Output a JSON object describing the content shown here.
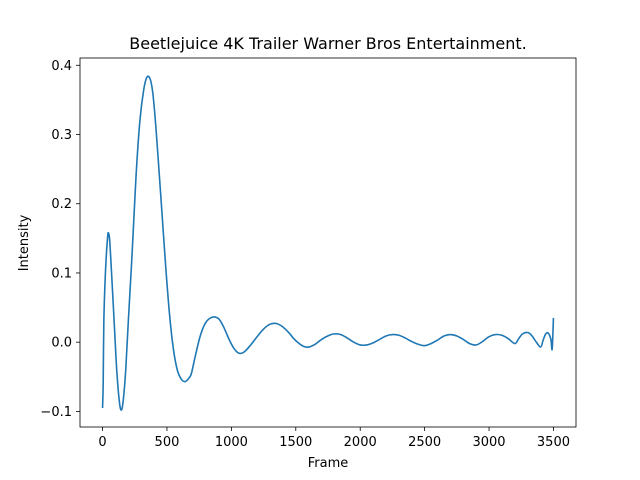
{
  "chart_data": {
    "type": "line",
    "title": "Beetlejuice  4K Trailer  Warner Bros Entertainment.",
    "xlabel": "Frame",
    "ylabel": "Intensity",
    "xlim": [
      -175,
      3675
    ],
    "ylim": [
      -0.1225,
      0.4105
    ],
    "xticks": [
      0,
      500,
      1000,
      1500,
      2000,
      2500,
      3000,
      3500
    ],
    "xtick_labels": [
      "0",
      "500",
      "1000",
      "1500",
      "2000",
      "2500",
      "3000",
      "3500"
    ],
    "yticks": [
      -0.1,
      0.0,
      0.1,
      0.2,
      0.3,
      0.4
    ],
    "ytick_labels": [
      "−0.1",
      "0.0",
      "0.1",
      "0.2",
      "0.3",
      "0.4"
    ],
    "grid": false,
    "series": [
      {
        "color": "#1f77b4",
        "x": [
          0,
          5,
          10,
          20,
          30,
          40,
          45,
          55,
          70,
          90,
          110,
          130,
          145,
          160,
          180,
          200,
          230,
          260,
          290,
          320,
          345,
          370,
          390,
          410,
          430,
          460,
          490,
          520,
          550,
          580,
          610,
          640,
          670,
          690,
          720,
          760,
          800,
          850,
          900,
          940,
          980,
          1020,
          1060,
          1100,
          1150,
          1200,
          1250,
          1300,
          1350,
          1400,
          1450,
          1480,
          1520,
          1560,
          1600,
          1650,
          1700,
          1760,
          1800,
          1850,
          1900,
          1950,
          2000,
          2050,
          2100,
          2150,
          2200,
          2250,
          2300,
          2350,
          2400,
          2450,
          2500,
          2550,
          2600,
          2650,
          2700,
          2750,
          2800,
          2850,
          2900,
          2950,
          3000,
          3050,
          3100,
          3150,
          3200,
          3230,
          3260,
          3300,
          3330,
          3360,
          3400,
          3420,
          3440,
          3460,
          3480,
          3490,
          3500
        ],
        "y": [
          -0.095,
          -0.06,
          0.03,
          0.09,
          0.128,
          0.153,
          0.158,
          0.148,
          0.1,
          0.03,
          -0.04,
          -0.085,
          -0.098,
          -0.085,
          -0.04,
          0.03,
          0.13,
          0.24,
          0.32,
          0.365,
          0.383,
          0.38,
          0.36,
          0.32,
          0.27,
          0.19,
          0.11,
          0.04,
          -0.01,
          -0.04,
          -0.053,
          -0.057,
          -0.052,
          -0.045,
          -0.02,
          0.01,
          0.028,
          0.036,
          0.034,
          0.022,
          0.005,
          -0.009,
          -0.016,
          -0.014,
          -0.004,
          0.008,
          0.019,
          0.026,
          0.027,
          0.022,
          0.013,
          0.006,
          -0.001,
          -0.006,
          -0.007,
          -0.003,
          0.004,
          0.01,
          0.012,
          0.011,
          0.006,
          0.0,
          -0.004,
          -0.004,
          -0.001,
          0.004,
          0.009,
          0.011,
          0.01,
          0.006,
          0.001,
          -0.003,
          -0.005,
          -0.002,
          0.003,
          0.009,
          0.011,
          0.009,
          0.004,
          -0.002,
          -0.004,
          0.001,
          0.008,
          0.011,
          0.01,
          0.005,
          -0.002,
          0.005,
          0.012,
          0.014,
          0.01,
          0.002,
          -0.007,
          0.003,
          0.012,
          0.013,
          0.004,
          -0.01,
          0.035
        ]
      }
    ]
  }
}
